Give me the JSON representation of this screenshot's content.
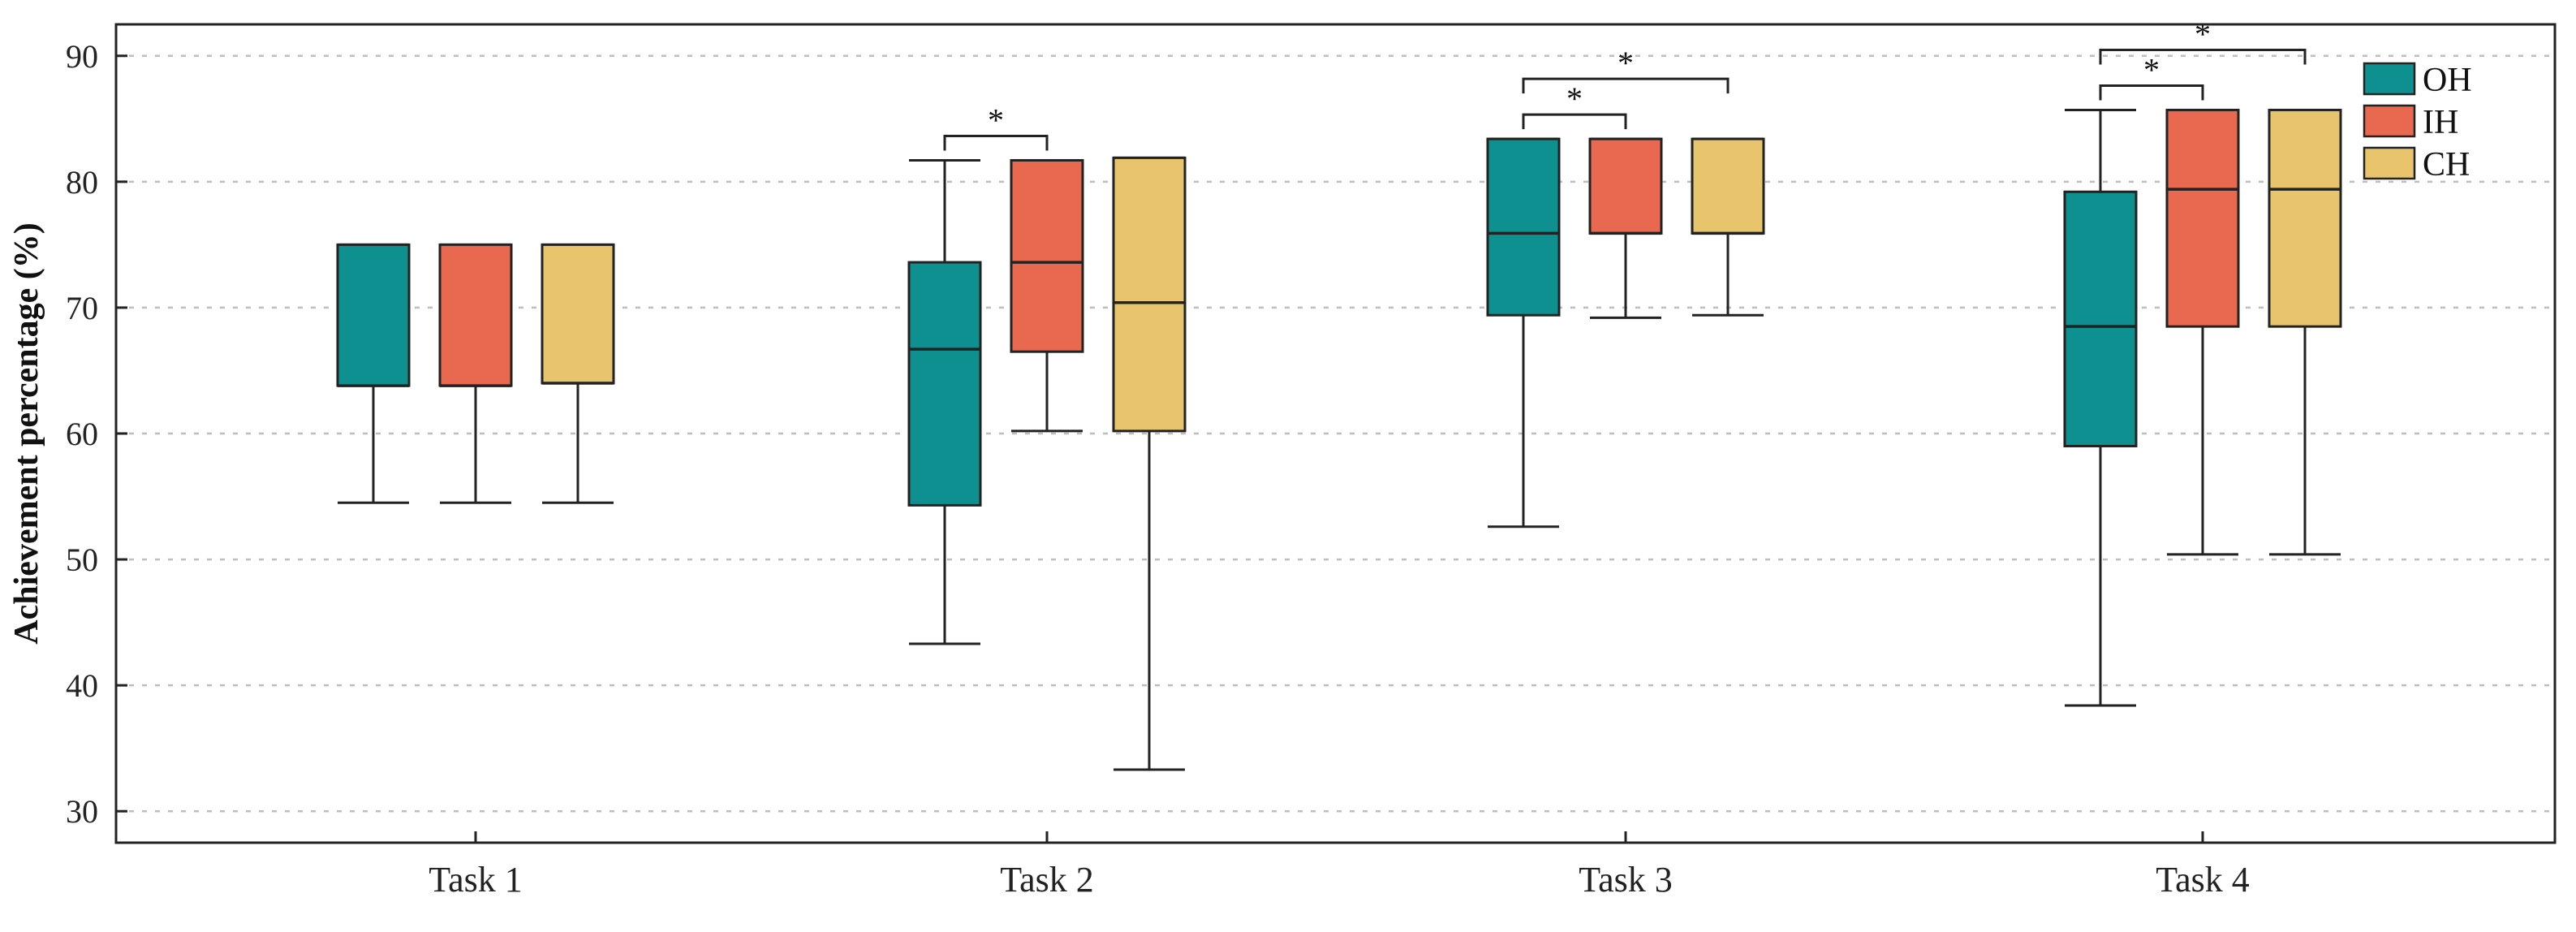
{
  "chart_data": {
    "type": "boxplot",
    "title": "",
    "xlabel": "",
    "ylabel": "Achievement percentage (%)",
    "ylim": [
      27.5,
      92.5
    ],
    "yticks": [
      30,
      40,
      50,
      60,
      70,
      80,
      90
    ],
    "grid": "horizontal dotted",
    "legend_position": "top-right",
    "categories": [
      "Task 1",
      "Task 2",
      "Task 3",
      "Task 4"
    ],
    "series": [
      {
        "name": "OH",
        "color": "#0f9090",
        "boxes": [
          {
            "whisker_low": 54.5,
            "q1": 63.8,
            "median": 63.8,
            "q3": 75.0,
            "whisker_high": 75.0
          },
          {
            "whisker_low": 43.3,
            "q1": 54.3,
            "median": 66.7,
            "q3": 73.6,
            "whisker_high": 81.7
          },
          {
            "whisker_low": 52.6,
            "q1": 69.4,
            "median": 75.9,
            "q3": 83.4,
            "whisker_high": 83.4
          },
          {
            "whisker_low": 38.4,
            "q1": 59.0,
            "median": 68.5,
            "q3": 79.2,
            "whisker_high": 85.7
          }
        ]
      },
      {
        "name": "IH",
        "color": "#e8694f",
        "boxes": [
          {
            "whisker_low": 54.5,
            "q1": 63.8,
            "median": 63.8,
            "q3": 75.0,
            "whisker_high": 75.0
          },
          {
            "whisker_low": 60.2,
            "q1": 66.5,
            "median": 73.6,
            "q3": 81.7,
            "whisker_high": 81.7
          },
          {
            "whisker_low": 69.2,
            "q1": 75.9,
            "median": 75.9,
            "q3": 83.4,
            "whisker_high": 83.4
          },
          {
            "whisker_low": 50.4,
            "q1": 68.5,
            "median": 79.4,
            "q3": 85.7,
            "whisker_high": 85.7
          }
        ]
      },
      {
        "name": "CH",
        "color": "#e8c56c",
        "boxes": [
          {
            "whisker_low": 54.5,
            "q1": 64.0,
            "median": 64.0,
            "q3": 75.0,
            "whisker_high": 75.0
          },
          {
            "whisker_low": 33.3,
            "q1": 60.2,
            "median": 70.4,
            "q3": 81.9,
            "whisker_high": 81.9
          },
          {
            "whisker_low": 69.4,
            "q1": 75.9,
            "median": 75.9,
            "q3": 83.4,
            "whisker_high": 83.4
          },
          {
            "whisker_low": 50.4,
            "q1": 68.5,
            "median": 79.4,
            "q3": 85.7,
            "whisker_high": 85.7
          }
        ]
      }
    ],
    "significance": [
      {
        "category": "Task 2",
        "from": "OH",
        "to": "IH",
        "label": "*",
        "level": 0
      },
      {
        "category": "Task 3",
        "from": "OH",
        "to": "IH",
        "label": "*",
        "level": 0
      },
      {
        "category": "Task 3",
        "from": "OH",
        "to": "CH",
        "label": "*",
        "level": 1
      },
      {
        "category": "Task 4",
        "from": "OH",
        "to": "IH",
        "label": "*",
        "level": 0
      },
      {
        "category": "Task 4",
        "from": "OH",
        "to": "CH",
        "label": "*",
        "level": 1
      }
    ]
  }
}
